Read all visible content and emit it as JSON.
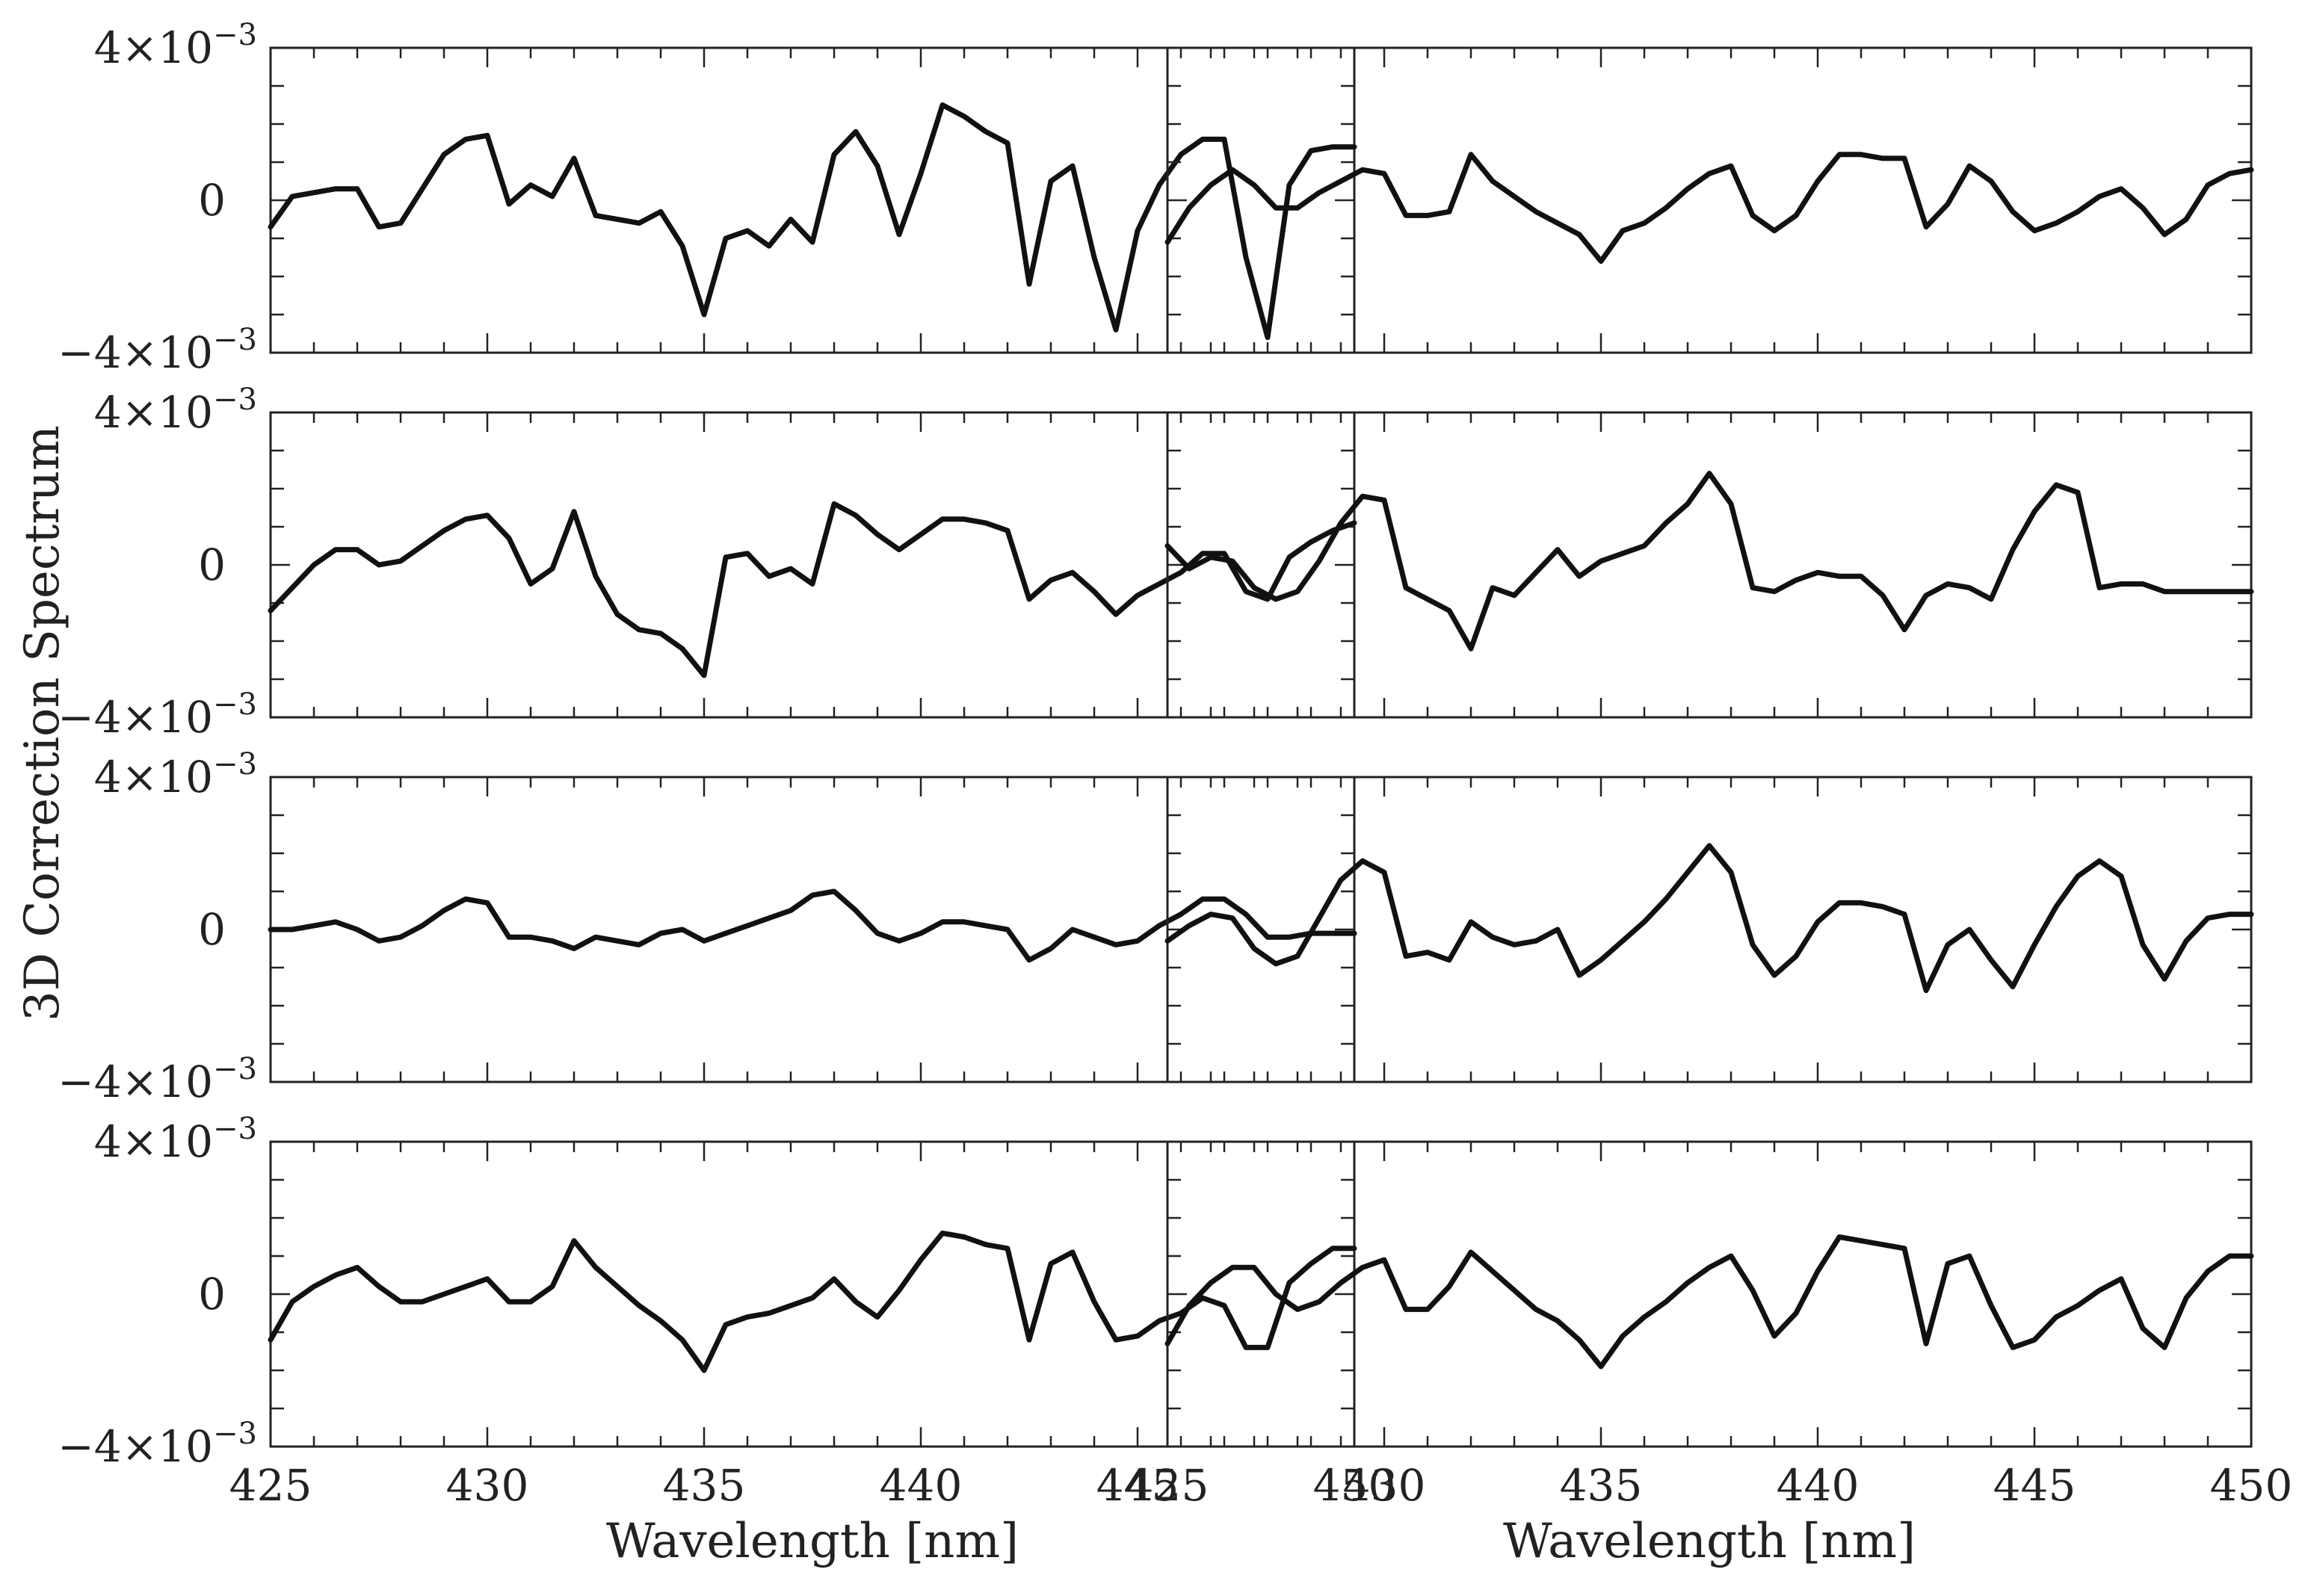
{
  "figure": {
    "ylabel": "3D Correction Spectrum",
    "xlabel": "Wavelength [nm]",
    "ytick_labels": {
      "top": "4×10",
      "bottom": "−4×10",
      "zero": "0",
      "exponent": "−3"
    },
    "xtick_labels": [
      "425",
      "430",
      "435",
      "440",
      "445",
      "450"
    ]
  },
  "chart_data": [
    {
      "type": "line",
      "panel": "row1-left",
      "xlim": [
        425,
        450
      ],
      "ylim": [
        -0.004,
        0.004
      ],
      "x": [
        425,
        425.5,
        426,
        426.5,
        427,
        427.5,
        428,
        428.5,
        429,
        429.5,
        430,
        430.5,
        431,
        431.5,
        432,
        432.5,
        433,
        433.5,
        434,
        434.5,
        435,
        435.5,
        436,
        436.5,
        437,
        437.5,
        438,
        438.5,
        439,
        439.5,
        440,
        440.5,
        441,
        441.5,
        442,
        442.5,
        443,
        443.5,
        444,
        444.5,
        445,
        445.5,
        446,
        446.5,
        447,
        447.5,
        448,
        448.5,
        449,
        449.5,
        450
      ],
      "y": [
        -0.0007,
        0.0001,
        0.0002,
        0.0003,
        0.0003,
        -0.0007,
        -0.0006,
        0.0003,
        0.0012,
        0.0016,
        0.0017,
        -0.0001,
        0.0004,
        0.0001,
        0.0011,
        -0.0004,
        -0.0005,
        -0.0006,
        -0.0003,
        -0.0012,
        -0.003,
        -0.001,
        -0.0008,
        -0.0012,
        -0.0005,
        -0.0011,
        0.0012,
        0.0018,
        0.0009,
        -0.0009,
        0.0007,
        0.0025,
        0.0022,
        0.0018,
        0.0015,
        -0.0022,
        0.0005,
        0.0009,
        -0.0015,
        -0.0034,
        -0.0008,
        0.0004,
        0.0012,
        0.0016,
        0.0016,
        -0.0015,
        -0.0036,
        0.0004,
        0.0013,
        0.0014,
        0.0014
      ]
    },
    {
      "type": "line",
      "panel": "row1-right",
      "xlim": [
        425,
        450
      ],
      "ylim": [
        -0.004,
        0.004
      ],
      "x": [
        425,
        425.5,
        426,
        426.5,
        427,
        427.5,
        428,
        428.5,
        429,
        429.5,
        430,
        430.5,
        431,
        431.5,
        432,
        432.5,
        433,
        433.5,
        434,
        434.5,
        435,
        435.5,
        436,
        436.5,
        437,
        437.5,
        438,
        438.5,
        439,
        439.5,
        440,
        440.5,
        441,
        441.5,
        442,
        442.5,
        443,
        443.5,
        444,
        444.5,
        445,
        445.5,
        446,
        446.5,
        447,
        447.5,
        448,
        448.5,
        449,
        449.5,
        450
      ],
      "y": [
        -0.0011,
        -0.0002,
        0.0004,
        0.0008,
        0.0004,
        -0.0002,
        -0.0002,
        0.0002,
        0.0005,
        0.0008,
        0.0007,
        -0.0004,
        -0.0004,
        -0.0003,
        0.0012,
        0.0005,
        0.0001,
        -0.0003,
        -0.0006,
        -0.0009,
        -0.0016,
        -0.0008,
        -0.0006,
        -0.0002,
        0.0003,
        0.0007,
        0.0009,
        -0.0004,
        -0.0008,
        -0.0004,
        0.0005,
        0.0012,
        0.0012,
        0.0011,
        0.0011,
        -0.0007,
        -0.0001,
        0.0009,
        0.0005,
        -0.0003,
        -0.0008,
        -0.0006,
        -0.0003,
        0.0001,
        0.0003,
        -0.0002,
        -0.0009,
        -0.0005,
        0.0004,
        0.0007,
        0.0008
      ]
    },
    {
      "type": "line",
      "panel": "row2-left",
      "xlim": [
        425,
        450
      ],
      "ylim": [
        -0.004,
        0.004
      ],
      "x": [
        425,
        425.5,
        426,
        426.5,
        427,
        427.5,
        428,
        428.5,
        429,
        429.5,
        430,
        430.5,
        431,
        431.5,
        432,
        432.5,
        433,
        433.5,
        434,
        434.5,
        435,
        435.5,
        436,
        436.5,
        437,
        437.5,
        438,
        438.5,
        439,
        439.5,
        440,
        440.5,
        441,
        441.5,
        442,
        442.5,
        443,
        443.5,
        444,
        444.5,
        445,
        445.5,
        446,
        446.5,
        447,
        447.5,
        448,
        448.5,
        449,
        449.5,
        450
      ],
      "y": [
        -0.0012,
        -0.0006,
        0,
        0.0004,
        0.0004,
        0,
        0.0001,
        0.0005,
        0.0009,
        0.0012,
        0.0013,
        0.0007,
        -0.0005,
        -0.0001,
        0.0014,
        -0.0003,
        -0.0013,
        -0.0017,
        -0.0018,
        -0.0022,
        -0.0029,
        0.0002,
        0.0003,
        -0.0003,
        -0.0001,
        -0.0005,
        0.0016,
        0.0013,
        0.0008,
        0.0004,
        0.0008,
        0.0012,
        0.0012,
        0.0011,
        0.0009,
        -0.0009,
        -0.0004,
        -0.0002,
        -0.0007,
        -0.0013,
        -0.0008,
        -0.0005,
        -0.0002,
        0.0003,
        0.0003,
        -0.0007,
        -0.0009,
        0.0002,
        0.0006,
        0.0009,
        0.0011
      ]
    },
    {
      "type": "line",
      "panel": "row2-right",
      "xlim": [
        425,
        450
      ],
      "ylim": [
        -0.004,
        0.004
      ],
      "x": [
        425,
        425.5,
        426,
        426.5,
        427,
        427.5,
        428,
        428.5,
        429,
        429.5,
        430,
        430.5,
        431,
        431.5,
        432,
        432.5,
        433,
        433.5,
        434,
        434.5,
        435,
        435.5,
        436,
        436.5,
        437,
        437.5,
        438,
        438.5,
        439,
        439.5,
        440,
        440.5,
        441,
        441.5,
        442,
        442.5,
        443,
        443.5,
        444,
        444.5,
        445,
        445.5,
        446,
        446.5,
        447,
        447.5,
        448,
        448.5,
        449,
        449.5,
        450
      ],
      "y": [
        0.0005,
        -0.0001,
        0.0002,
        0.0001,
        -0.0006,
        -0.0009,
        -0.0007,
        0.0001,
        0.0011,
        0.0018,
        0.0017,
        -0.0006,
        -0.0009,
        -0.0012,
        -0.0022,
        -0.0006,
        -0.0008,
        -0.0002,
        0.0004,
        -0.0003,
        0.0001,
        0.0003,
        0.0005,
        0.0011,
        0.0016,
        0.0024,
        0.0016,
        -0.0006,
        -0.0007,
        -0.0004,
        -0.0002,
        -0.0003,
        -0.0003,
        -0.0008,
        -0.0017,
        -0.0008,
        -0.0005,
        -0.0006,
        -0.0009,
        0.0004,
        0.0014,
        0.0021,
        0.0019,
        -0.0006,
        -0.0005,
        -0.0005,
        -0.0007,
        -0.0007,
        -0.0007,
        -0.0007,
        -0.0007
      ]
    },
    {
      "type": "line",
      "panel": "row3-left",
      "xlim": [
        425,
        450
      ],
      "ylim": [
        -0.004,
        0.004
      ],
      "x": [
        425,
        425.5,
        426,
        426.5,
        427,
        427.5,
        428,
        428.5,
        429,
        429.5,
        430,
        430.5,
        431,
        431.5,
        432,
        432.5,
        433,
        433.5,
        434,
        434.5,
        435,
        435.5,
        436,
        436.5,
        437,
        437.5,
        438,
        438.5,
        439,
        439.5,
        440,
        440.5,
        441,
        441.5,
        442,
        442.5,
        443,
        443.5,
        444,
        444.5,
        445,
        445.5,
        446,
        446.5,
        447,
        447.5,
        448,
        448.5,
        449,
        449.5,
        450
      ],
      "y": [
        0,
        0,
        0.0001,
        0.0002,
        0,
        -0.0003,
        -0.0002,
        0.0001,
        0.0005,
        0.0008,
        0.0007,
        -0.0002,
        -0.0002,
        -0.0003,
        -0.0005,
        -0.0002,
        -0.0003,
        -0.0004,
        -0.0001,
        0,
        -0.0003,
        -0.0001,
        0.0001,
        0.0003,
        0.0005,
        0.0009,
        0.001,
        0.0005,
        -0.0001,
        -0.0003,
        -0.0001,
        0.0002,
        0.0002,
        0.0001,
        0,
        -0.0008,
        -0.0005,
        0,
        -0.0002,
        -0.0004,
        -0.0003,
        0.0001,
        0.0004,
        0.0008,
        0.0008,
        0.0004,
        -0.0002,
        -0.0002,
        -0.0001,
        -0.0001,
        -0.0001
      ]
    },
    {
      "type": "line",
      "panel": "row3-right",
      "xlim": [
        425,
        450
      ],
      "ylim": [
        -0.004,
        0.004
      ],
      "x": [
        425,
        425.5,
        426,
        426.5,
        427,
        427.5,
        428,
        428.5,
        429,
        429.5,
        430,
        430.5,
        431,
        431.5,
        432,
        432.5,
        433,
        433.5,
        434,
        434.5,
        435,
        435.5,
        436,
        436.5,
        437,
        437.5,
        438,
        438.5,
        439,
        439.5,
        440,
        440.5,
        441,
        441.5,
        442,
        442.5,
        443,
        443.5,
        444,
        444.5,
        445,
        445.5,
        446,
        446.5,
        447,
        447.5,
        448,
        448.5,
        449,
        449.5,
        450
      ],
      "y": [
        -0.0003,
        0.0001,
        0.0004,
        0.0003,
        -0.0005,
        -0.0009,
        -0.0007,
        0.0003,
        0.0013,
        0.0018,
        0.0015,
        -0.0007,
        -0.0006,
        -0.0008,
        0.0002,
        -0.0002,
        -0.0004,
        -0.0003,
        0,
        -0.0012,
        -0.0008,
        -0.0003,
        0.0002,
        0.0008,
        0.0015,
        0.0022,
        0.0015,
        -0.0004,
        -0.0012,
        -0.0007,
        0.0002,
        0.0007,
        0.0007,
        0.0006,
        0.0004,
        -0.0016,
        -0.0004,
        0,
        -0.0008,
        -0.0015,
        -0.0004,
        0.0006,
        0.0014,
        0.0018,
        0.0014,
        -0.0004,
        -0.0013,
        -0.0003,
        0.0003,
        0.0004,
        0.0004
      ]
    },
    {
      "type": "line",
      "panel": "row4-left",
      "xlim": [
        425,
        450
      ],
      "ylim": [
        -0.004,
        0.004
      ],
      "x": [
        425,
        425.5,
        426,
        426.5,
        427,
        427.5,
        428,
        428.5,
        429,
        429.5,
        430,
        430.5,
        431,
        431.5,
        432,
        432.5,
        433,
        433.5,
        434,
        434.5,
        435,
        435.5,
        436,
        436.5,
        437,
        437.5,
        438,
        438.5,
        439,
        439.5,
        440,
        440.5,
        441,
        441.5,
        442,
        442.5,
        443,
        443.5,
        444,
        444.5,
        445,
        445.5,
        446,
        446.5,
        447,
        447.5,
        448,
        448.5,
        449,
        449.5,
        450
      ],
      "y": [
        -0.0012,
        -0.0002,
        0.0002,
        0.0005,
        0.0007,
        0.0002,
        -0.0002,
        -0.0002,
        0,
        0.0002,
        0.0004,
        -0.0002,
        -0.0002,
        0.0002,
        0.0014,
        0.0007,
        0.0002,
        -0.0003,
        -0.0007,
        -0.0012,
        -0.002,
        -0.0008,
        -0.0006,
        -0.0005,
        -0.0003,
        -0.0001,
        0.0004,
        -0.0002,
        -0.0006,
        0.0001,
        0.0009,
        0.0016,
        0.0015,
        0.0013,
        0.0012,
        -0.0012,
        0.0008,
        0.0011,
        -0.0002,
        -0.0012,
        -0.0011,
        -0.0007,
        -0.0005,
        -0.0001,
        -0.0003,
        -0.0014,
        -0.0014,
        0.0003,
        0.0008,
        0.0012,
        0.0012
      ]
    },
    {
      "type": "line",
      "panel": "row4-right",
      "xlim": [
        425,
        450
      ],
      "ylim": [
        -0.004,
        0.004
      ],
      "x": [
        425,
        425.5,
        426,
        426.5,
        427,
        427.5,
        428,
        428.5,
        429,
        429.5,
        430,
        430.5,
        431,
        431.5,
        432,
        432.5,
        433,
        433.5,
        434,
        434.5,
        435,
        435.5,
        436,
        436.5,
        437,
        437.5,
        438,
        438.5,
        439,
        439.5,
        440,
        440.5,
        441,
        441.5,
        442,
        442.5,
        443,
        443.5,
        444,
        444.5,
        445,
        445.5,
        446,
        446.5,
        447,
        447.5,
        448,
        448.5,
        449,
        449.5,
        450
      ],
      "y": [
        -0.0013,
        -0.0003,
        0.0003,
        0.0007,
        0.0007,
        0,
        -0.0004,
        -0.0002,
        0.0003,
        0.0007,
        0.0009,
        -0.0004,
        -0.0004,
        0.0002,
        0.0011,
        0.0006,
        0.0001,
        -0.0004,
        -0.0007,
        -0.0012,
        -0.0019,
        -0.0011,
        -0.0006,
        -0.0002,
        0.0003,
        0.0007,
        0.001,
        0.0001,
        -0.0011,
        -0.0005,
        0.0006,
        0.0015,
        0.0014,
        0.0013,
        0.0012,
        -0.0013,
        0.0008,
        0.001,
        -0.0003,
        -0.0014,
        -0.0012,
        -0.0006,
        -0.0003,
        0.0001,
        0.0004,
        -0.0009,
        -0.0014,
        -0.0001,
        0.0006,
        0.001,
        0.001
      ]
    }
  ]
}
